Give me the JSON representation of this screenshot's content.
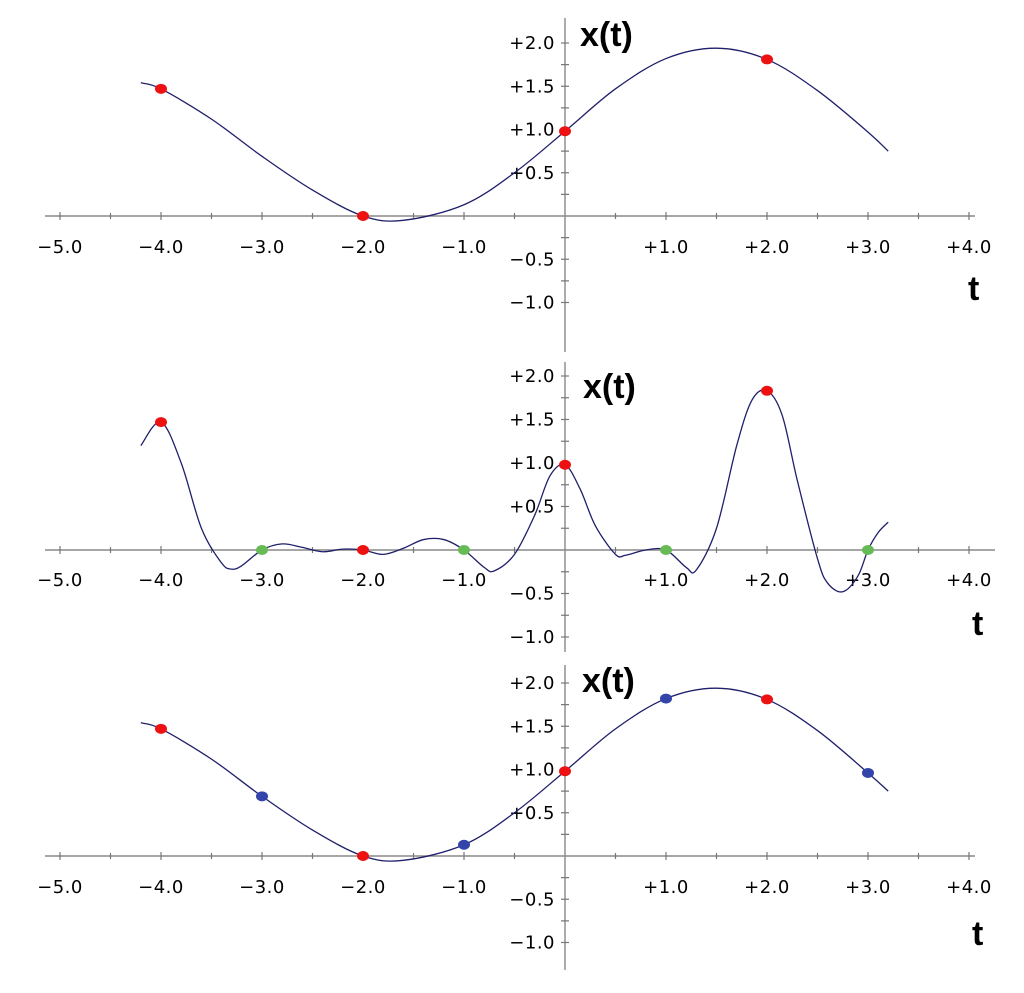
{
  "chart_data": [
    {
      "type": "line",
      "xlabel": "t",
      "ylabel": "x(t)",
      "xlim": [
        -5.0,
        4.0
      ],
      "ylim": [
        -1.0,
        2.0
      ],
      "x_tick_labels": [
        "−5.0",
        "−4.0",
        "−3.0",
        "−2.0",
        "−1.0",
        "+1.0",
        "+2.0",
        "+3.0",
        "+4.0"
      ],
      "y_tick_labels": [
        "+2.0",
        "+1.5",
        "+1.0",
        "+0.5",
        "−0.5",
        "−1.0"
      ],
      "curve": {
        "t": [
          -4.2,
          -4.0,
          -3.5,
          -3.0,
          -2.5,
          -2.0,
          -1.6,
          -1.0,
          -0.5,
          0.0,
          0.5,
          1.0,
          1.5,
          2.0,
          2.5,
          3.0,
          3.2
        ],
        "x": [
          1.54,
          1.47,
          1.12,
          0.69,
          0.3,
          0.0,
          -0.05,
          0.13,
          0.5,
          0.98,
          1.47,
          1.82,
          1.94,
          1.81,
          1.45,
          0.97,
          0.75
        ]
      },
      "markers": [
        {
          "t": -4.0,
          "x": 1.47,
          "color": "#ee1111"
        },
        {
          "t": -2.0,
          "x": 0.0,
          "color": "#ee1111"
        },
        {
          "t": 0.0,
          "x": 0.98,
          "color": "#ee1111"
        },
        {
          "t": 2.0,
          "x": 1.81,
          "color": "#ee1111"
        }
      ]
    },
    {
      "type": "line",
      "xlabel": "t",
      "ylabel": "x(t)",
      "xlim": [
        -5.0,
        4.0
      ],
      "ylim": [
        -1.0,
        2.0
      ],
      "x_tick_labels": [
        "−5.0",
        "−4.0",
        "−3.0",
        "−2.0",
        "−1.0",
        "+1.0",
        "+2.0",
        "+3.0",
        "+4.0"
      ],
      "y_tick_labels": [
        "+2.0",
        "+1.5",
        "+1.0",
        "+0.5",
        "−0.5",
        "−1.0"
      ],
      "curve": {
        "t": [
          -4.2,
          -4.0,
          -3.8,
          -3.6,
          -3.4,
          -3.3,
          -3.2,
          -3.0,
          -2.8,
          -2.6,
          -2.4,
          -2.2,
          -2.0,
          -1.8,
          -1.6,
          -1.4,
          -1.2,
          -1.0,
          -0.8,
          -0.7,
          -0.5,
          -0.3,
          -0.15,
          0.0,
          0.15,
          0.3,
          0.5,
          0.6,
          0.8,
          1.0,
          1.2,
          1.3,
          1.5,
          1.7,
          1.85,
          2.0,
          2.15,
          2.3,
          2.5,
          2.6,
          2.75,
          2.9,
          3.0,
          3.1,
          3.2
        ],
        "x": [
          1.2,
          1.47,
          1.0,
          0.25,
          -0.15,
          -0.22,
          -0.18,
          0.0,
          0.07,
          0.03,
          -0.02,
          0.01,
          0.0,
          -0.05,
          0.02,
          0.12,
          0.12,
          0.0,
          -0.2,
          -0.24,
          -0.05,
          0.4,
          0.85,
          0.98,
          0.7,
          0.28,
          -0.05,
          -0.06,
          0.0,
          0.0,
          -0.2,
          -0.23,
          0.25,
          1.2,
          1.72,
          1.83,
          1.55,
          0.8,
          -0.1,
          -0.38,
          -0.48,
          -0.3,
          0.0,
          0.2,
          0.32
        ]
      },
      "markers": [
        {
          "t": -4.0,
          "x": 1.47,
          "color": "#ee1111"
        },
        {
          "t": -3.0,
          "x": 0.0,
          "color": "#66bb55"
        },
        {
          "t": -2.0,
          "x": 0.0,
          "color": "#ee1111"
        },
        {
          "t": -1.0,
          "x": 0.0,
          "color": "#66bb55"
        },
        {
          "t": 0.0,
          "x": 0.98,
          "color": "#ee1111"
        },
        {
          "t": 1.0,
          "x": 0.0,
          "color": "#66bb55"
        },
        {
          "t": 2.0,
          "x": 1.83,
          "color": "#ee1111"
        },
        {
          "t": 3.0,
          "x": 0.0,
          "color": "#66bb55"
        }
      ]
    },
    {
      "type": "line",
      "xlabel": "t",
      "ylabel": "x(t)",
      "xlim": [
        -5.0,
        4.0
      ],
      "ylim": [
        -1.0,
        2.0
      ],
      "x_tick_labels": [
        "−5.0",
        "−4.0",
        "−3.0",
        "−2.0",
        "−1.0",
        "+1.0",
        "+2.0",
        "+3.0",
        "+4.0"
      ],
      "y_tick_labels": [
        "+2.0",
        "+1.5",
        "+1.0",
        "+0.5",
        "−0.5",
        "−1.0"
      ],
      "curve": {
        "t": [
          -4.2,
          -4.0,
          -3.5,
          -3.0,
          -2.5,
          -2.0,
          -1.6,
          -1.0,
          -0.5,
          0.0,
          0.5,
          1.0,
          1.5,
          2.0,
          2.5,
          3.0,
          3.2
        ],
        "x": [
          1.54,
          1.47,
          1.12,
          0.69,
          0.3,
          0.0,
          -0.05,
          0.13,
          0.5,
          0.98,
          1.47,
          1.82,
          1.94,
          1.81,
          1.45,
          0.96,
          0.75
        ]
      },
      "markers": [
        {
          "t": -4.0,
          "x": 1.47,
          "color": "#ee1111"
        },
        {
          "t": -3.0,
          "x": 0.69,
          "color": "#3344aa"
        },
        {
          "t": -2.0,
          "x": 0.0,
          "color": "#ee1111"
        },
        {
          "t": -1.0,
          "x": 0.13,
          "color": "#3344aa"
        },
        {
          "t": 0.0,
          "x": 0.98,
          "color": "#ee1111"
        },
        {
          "t": 1.0,
          "x": 1.82,
          "color": "#3344aa"
        },
        {
          "t": 2.0,
          "x": 1.81,
          "color": "#ee1111"
        },
        {
          "t": 3.0,
          "x": 0.96,
          "color": "#3344aa"
        }
      ]
    }
  ]
}
